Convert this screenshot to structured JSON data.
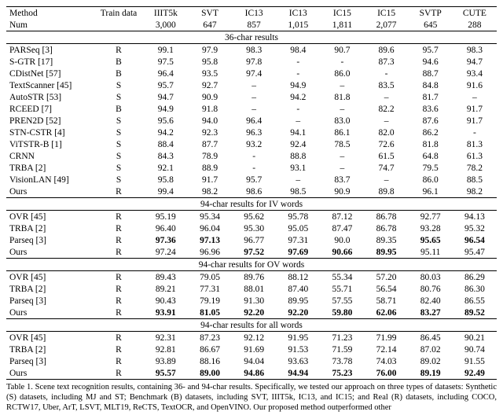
{
  "header": {
    "cols": [
      "Method",
      "Train data",
      "IIIT5k",
      "SVT",
      "IC13",
      "IC13",
      "IC15",
      "IC15",
      "SVTP",
      "CUTE"
    ],
    "num_row": [
      "Num",
      "",
      "3,000",
      "647",
      "857",
      "1,015",
      "1,811",
      "2,077",
      "645",
      "288"
    ]
  },
  "sections": [
    {
      "title": "36-char results",
      "rows": [
        {
          "method": "PARSeq [3]",
          "train": "R",
          "vals": [
            "99.1",
            "97.9",
            "98.3",
            "98.4",
            "90.7",
            "89.6",
            "95.7",
            "98.3"
          ]
        },
        {
          "method": "S-GTR [17]",
          "train": "B",
          "vals": [
            "97.5",
            "95.8",
            "97.8",
            "-",
            "-",
            "87.3",
            "94.6",
            "94.7"
          ]
        },
        {
          "method": "CDistNet [57]",
          "train": "B",
          "vals": [
            "96.4",
            "93.5",
            "97.4",
            "-",
            "86.0",
            "-",
            "88.7",
            "93.4"
          ]
        },
        {
          "method": "TextScanner [45]",
          "train": "S",
          "vals": [
            "95.7",
            "92.7",
            "–",
            "94.9",
            "–",
            "83.5",
            "84.8",
            "91.6"
          ]
        },
        {
          "method": "AutoSTR [53]",
          "train": "S",
          "vals": [
            "94.7",
            "90.9",
            "–",
            "94.2",
            "81.8",
            "–",
            "81.7",
            "–"
          ]
        },
        {
          "method": "RCEED [7]",
          "train": "B",
          "vals": [
            "94.9",
            "91.8",
            "–",
            "-",
            "–",
            "82.2",
            "83.6",
            "91.7"
          ]
        },
        {
          "method": "PREN2D [52]",
          "train": "S",
          "vals": [
            "95.6",
            "94.0",
            "96.4",
            "–",
            "83.0",
            "–",
            "87.6",
            "91.7"
          ]
        },
        {
          "method": "STN-CSTR [4]",
          "train": "S",
          "vals": [
            "94.2",
            "92.3",
            "96.3",
            "94.1",
            "86.1",
            "82.0",
            "86.2",
            "-"
          ]
        },
        {
          "method": "ViTSTR-B [1]",
          "train": "S",
          "vals": [
            "88.4",
            "87.7",
            "93.2",
            "92.4",
            "78.5",
            "72.6",
            "81.8",
            "81.3"
          ]
        },
        {
          "method": "CRNN",
          "train": "S",
          "vals": [
            "84.3",
            "78.9",
            "-",
            "88.8",
            "–",
            "61.5",
            "64.8",
            "61.3"
          ]
        },
        {
          "method": "TRBA [2]",
          "train": "S",
          "vals": [
            "92.1",
            "88.9",
            "-",
            "93.1",
            "–",
            "74.7",
            "79.5",
            "78.2"
          ]
        },
        {
          "method": "VisionLAN [49]",
          "train": "S",
          "vals": [
            "95.8",
            "91.7",
            "95.7",
            "–",
            "83.7",
            "–",
            "86.0",
            "88.5"
          ]
        },
        {
          "method": "Ours",
          "train": "R",
          "vals": [
            "99.4",
            "98.2",
            "98.6",
            "98.5",
            "90.9",
            "89.8",
            "96.1",
            "98.2"
          ]
        }
      ]
    },
    {
      "title": "94-char results for IV words",
      "rows": [
        {
          "method": "OVR [45]",
          "train": "R",
          "vals": [
            "95.19",
            "95.34",
            "95.62",
            "95.78",
            "87.12",
            "86.78",
            "92.77",
            "94.13"
          ]
        },
        {
          "method": "TRBA [2]",
          "train": "R",
          "vals": [
            "96.40",
            "96.04",
            "95.30",
            "95.05",
            "87.47",
            "86.78",
            "93.28",
            "95.32"
          ]
        },
        {
          "method": "Parseq [3]",
          "train": "R",
          "vals": [
            "97.36",
            "97.13",
            "96.77",
            "97.31",
            "90.0",
            "89.35",
            "95.65",
            "96.54"
          ],
          "bold": [
            2,
            3,
            8,
            9
          ]
        },
        {
          "method": "Ours",
          "train": "R",
          "vals": [
            "97.24",
            "96.96",
            "97.52",
            "97.69",
            "90.66",
            "89.95",
            "95.11",
            "95.47"
          ],
          "bold": [
            4,
            5,
            6,
            7
          ]
        }
      ]
    },
    {
      "title": "94-char results for OV words",
      "rows": [
        {
          "method": "OVR [45]",
          "train": "R",
          "vals": [
            "89.43",
            "79.05",
            "89.76",
            "88.12",
            "55.34",
            "57.20",
            "80.03",
            "86.29"
          ]
        },
        {
          "method": "TRBA [2]",
          "train": "R",
          "vals": [
            "89.21",
            "77.31",
            "88.01",
            "87.40",
            "55.71",
            "56.54",
            "80.76",
            "86.30"
          ]
        },
        {
          "method": "Parseq [3]",
          "train": "R",
          "vals": [
            "90.43",
            "79.19",
            "91.30",
            "89.95",
            "57.55",
            "58.71",
            "82.40",
            "86.55"
          ]
        },
        {
          "method": "Ours",
          "train": "R",
          "vals": [
            "93.91",
            "81.05",
            "92.20",
            "92.20",
            "59.80",
            "62.06",
            "83.27",
            "89.52"
          ],
          "bold": [
            2,
            3,
            4,
            5,
            6,
            7,
            8,
            9
          ]
        }
      ]
    },
    {
      "title": "94-char results for all words",
      "rows": [
        {
          "method": "OVR [45]",
          "train": "R",
          "vals": [
            "92.31",
            "87.23",
            "92.12",
            "91.95",
            "71.23",
            "71.99",
            "86.45",
            "90.21"
          ]
        },
        {
          "method": "TRBA [2]",
          "train": "R",
          "vals": [
            "92.81",
            "86.67",
            "91.69",
            "91.53",
            "71.59",
            "72.14",
            "87.02",
            "90.74"
          ]
        },
        {
          "method": "Parseq [3]",
          "train": "R",
          "vals": [
            "93.89",
            "88.16",
            "94.04",
            "93.63",
            "73.78",
            "74.03",
            "89.02",
            "91.55"
          ]
        },
        {
          "method": "Ours",
          "train": "R",
          "vals": [
            "95.57",
            "89.00",
            "94.86",
            "94.94",
            "75.23",
            "76.00",
            "89.19",
            "92.49"
          ],
          "bold": [
            2,
            3,
            4,
            5,
            6,
            7,
            8,
            9
          ]
        }
      ]
    }
  ],
  "caption": "Table 1. Scene text recognition results, containing 36- and 94-char results. Specifically, we tested our approach on three types of datasets: Synthetic (S) datasets, including MJ and ST; Benchmark (B) datasets, including SVT, IIIT5k, IC13, and IC15; and Real (R) datasets, including COCO, RCTW17, Uber, ArT, LSVT, MLT19, ReCTS, TextOCR, and OpenVINO. Our proposed method outperformed other"
}
